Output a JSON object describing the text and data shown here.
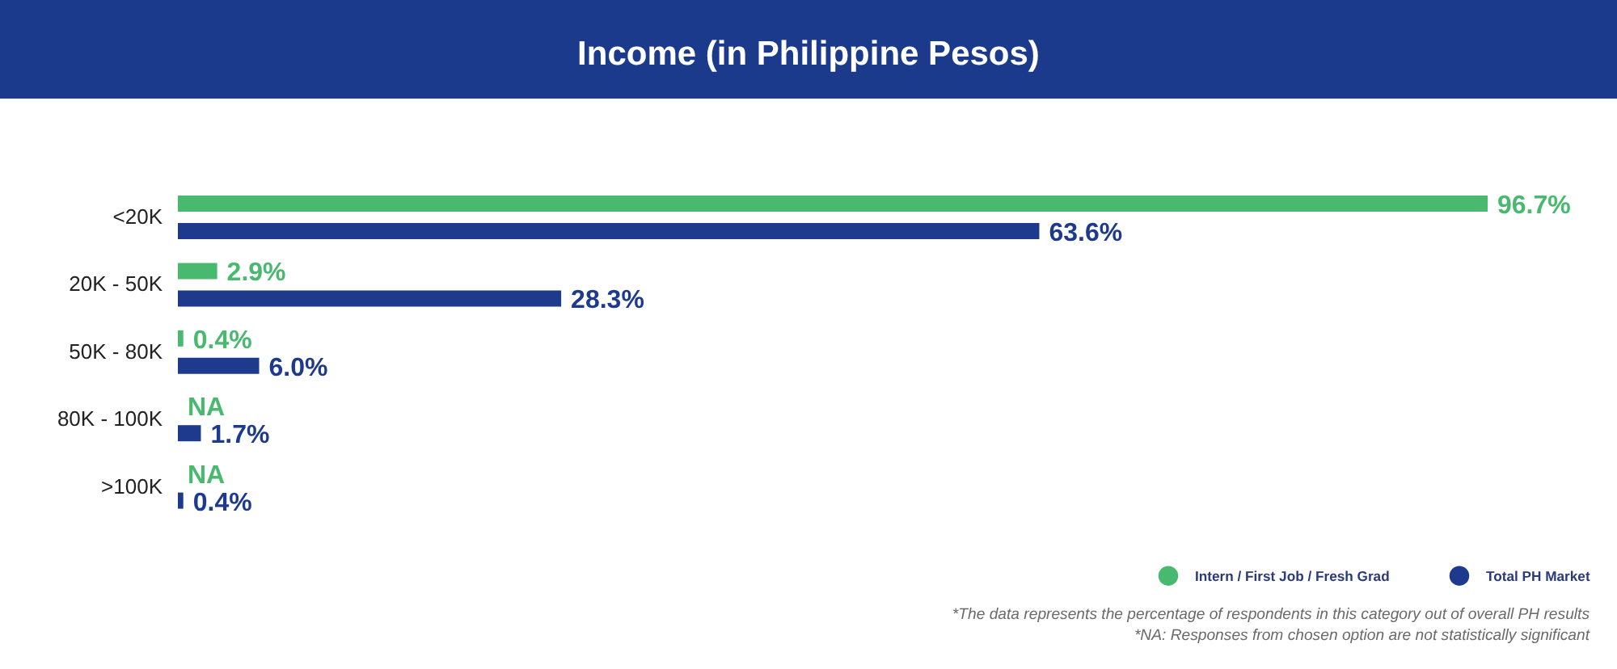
{
  "chart_data": {
    "type": "bar",
    "orientation": "horizontal",
    "title": "Income (in Philippine Pesos)",
    "categories": [
      "<20K",
      "20K - 50K",
      "50K - 80K",
      "80K - 100K",
      ">100K"
    ],
    "series": [
      {
        "name": "Intern / First Job / Fresh Grad",
        "color": "#48b96e",
        "values": [
          96.7,
          2.9,
          0.4,
          null,
          null
        ],
        "value_labels": [
          "96.7%",
          "2.9%",
          "0.4%",
          "NA",
          "NA"
        ]
      },
      {
        "name": "Total PH Market",
        "color": "#1e3a8c",
        "values": [
          63.6,
          28.3,
          6.0,
          1.7,
          0.4
        ],
        "value_labels": [
          "63.6%",
          "28.3%",
          "6.0%",
          "1.7%",
          "0.4%"
        ]
      }
    ],
    "tick_labels": "y",
    "legend": "bottom right",
    "annotations": [
      "*The data represents the percentage of respondents in this category out of overall PH results",
      "*NA: Responses from chosen option are not statistically significant"
    ]
  }
}
